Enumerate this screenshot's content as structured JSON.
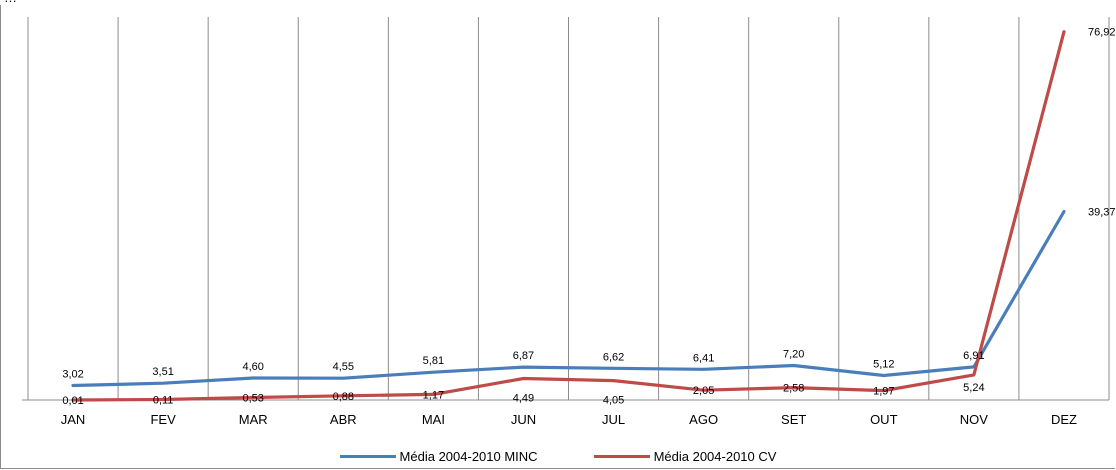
{
  "title": "…",
  "chart_data": {
    "type": "line",
    "categories": [
      "JAN",
      "FEV",
      "MAR",
      "ABR",
      "MAI",
      "JUN",
      "JUL",
      "AGO",
      "SET",
      "OUT",
      "NOV",
      "DEZ"
    ],
    "series": [
      {
        "name": "Média 2004-2010 MINC",
        "color": "#4a7ebb",
        "values": [
          3.02,
          3.51,
          4.6,
          4.55,
          5.81,
          6.87,
          6.62,
          6.41,
          7.2,
          5.12,
          6.91,
          39.37
        ],
        "labels": [
          "3,02",
          "3,51",
          "4,60",
          "4,55",
          "5,81",
          "6,87",
          "6,62",
          "6,41",
          "7,20",
          "5,12",
          "6,91",
          "39,37"
        ]
      },
      {
        "name": "Média 2004-2010 CV",
        "color": "#be4b48",
        "values": [
          0.01,
          0.11,
          0.53,
          0.88,
          1.17,
          4.49,
          4.05,
          2.05,
          2.58,
          1.97,
          5.24,
          76.92
        ],
        "labels": [
          "0,01",
          "0,11",
          "0,53",
          "0,88",
          "1,17",
          "4,49",
          "4,05",
          "2,05",
          "2,58",
          "1,97",
          "5,24",
          "76,92"
        ]
      }
    ],
    "ylim": [
      0,
      80
    ],
    "grid": "vertical",
    "legend": "bottom"
  }
}
